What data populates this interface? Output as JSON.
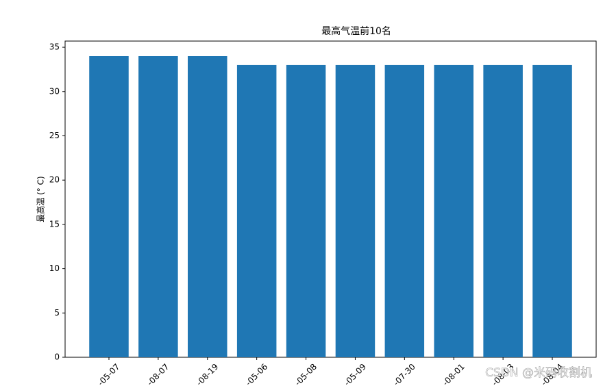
{
  "chart_data": {
    "type": "bar",
    "title": "最高气温前10名",
    "y_label": "最高温 (° C)",
    "categories": [
      "-05-07",
      "-08-07",
      "-08-19",
      "-05-06",
      "-05-08",
      "-05-09",
      "-07-30",
      "-08-01",
      "-08-03",
      "-08-04"
    ],
    "values": [
      34,
      34,
      34,
      33,
      33,
      33,
      33,
      33,
      33,
      33
    ],
    "color": "#1f77b4",
    "ylim": [
      0,
      35.7
    ],
    "yticks": [
      0,
      5,
      10,
      15,
      20,
      25,
      30,
      35
    ],
    "grid": false,
    "watermark": "CSDN @米码收割机"
  }
}
